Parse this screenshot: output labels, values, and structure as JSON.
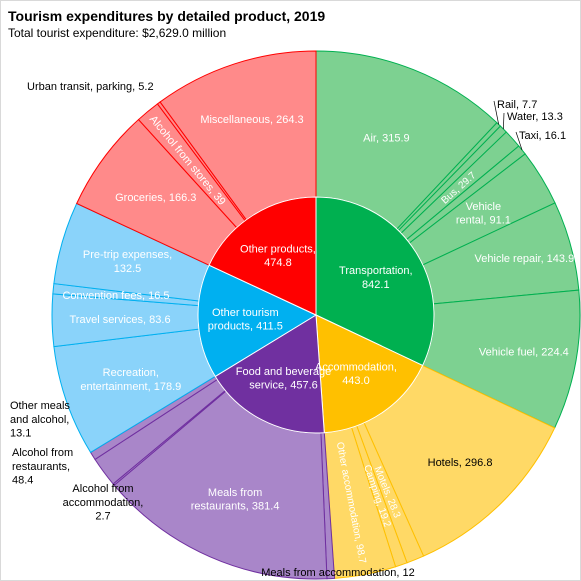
{
  "chart_data": {
    "type": "sunburst",
    "title": "Tourism expenditures by detailed product, 2019",
    "subtitle": "Total tourist expenditure: $2,629.0 million",
    "inner": [
      {
        "name": "Transportation",
        "value": 842.1,
        "label": "Transportation, 842.1",
        "color": "#00b050"
      },
      {
        "name": "Accommodation",
        "value": 443.0,
        "label": "Accommodation, 443.0",
        "color": "#ffc000"
      },
      {
        "name": "Food and beverage service",
        "value": 457.6,
        "label": "Food and beverage service, 457.6",
        "color": "#7030a0"
      },
      {
        "name": "Other tourism products",
        "value": 411.5,
        "label": "Other tourism products, 411.5",
        "color": "#00b0f0"
      },
      {
        "name": "Other products",
        "value": 474.8,
        "label": "Other products, 474.8",
        "color": "#ff0000"
      }
    ],
    "outer": [
      {
        "parent": "Transportation",
        "name": "Air",
        "value": 315.9,
        "label": "Air, 315.9",
        "color": "#7dd191"
      },
      {
        "parent": "Transportation",
        "name": "Rail",
        "value": 7.7,
        "label": "Rail, 7.7",
        "color": "#7dd191"
      },
      {
        "parent": "Transportation",
        "name": "Water",
        "value": 13.3,
        "label": "Water, 13.3",
        "color": "#7dd191"
      },
      {
        "parent": "Transportation",
        "name": "Bus",
        "value": 29.7,
        "label": "Bus, 29.7",
        "color": "#7dd191"
      },
      {
        "parent": "Transportation",
        "name": "Taxi",
        "value": 16.1,
        "label": "Taxi, 16.1",
        "color": "#7dd191"
      },
      {
        "parent": "Transportation",
        "name": "Vehicle rental",
        "value": 91.1,
        "label": "Vehicle rental, 91.1",
        "color": "#7dd191"
      },
      {
        "parent": "Transportation",
        "name": "Vehicle repair",
        "value": 143.9,
        "label": "Vehicle repair, 143.9",
        "color": "#7dd191"
      },
      {
        "parent": "Transportation",
        "name": "Vehicle fuel",
        "value": 224.4,
        "label": "Vehicle fuel, 224.4",
        "color": "#7dd191"
      },
      {
        "parent": "Accommodation",
        "name": "Hotels",
        "value": 296.8,
        "label": "Hotels, 296.8",
        "color": "#ffd966"
      },
      {
        "parent": "Accommodation",
        "name": "Motels",
        "value": 28.3,
        "label": "Motels, 28.3",
        "color": "#ffd966"
      },
      {
        "parent": "Accommodation",
        "name": "Camping",
        "value": 19.2,
        "label": "Camping, 19.2",
        "color": "#ffd966"
      },
      {
        "parent": "Accommodation",
        "name": "Other accommodation",
        "value": 98.7,
        "label": "Other accommodation, 98.7",
        "color": "#ffd966"
      },
      {
        "parent": "Food and beverage service",
        "name": "Meals from accommodation",
        "value": 12,
        "label": "Meals from accommodation, 12",
        "color": "#a986c9"
      },
      {
        "parent": "Food and beverage service",
        "name": "Meals from restaurants",
        "value": 381.4,
        "label": "Meals from restaurants, 381.4",
        "color": "#a986c9"
      },
      {
        "parent": "Food and beverage service",
        "name": "Alcohol from accommodation",
        "value": 2.7,
        "label": "Alcohol from accommodation, 2.7",
        "color": "#a986c9"
      },
      {
        "parent": "Food and beverage service",
        "name": "Alcohol from restaurants",
        "value": 48.4,
        "label": "Alcohol from restaurants, 48.4",
        "color": "#a986c9"
      },
      {
        "parent": "Food and beverage service",
        "name": "Other meals and alcohol",
        "value": 13.1,
        "label": "Other meals and alcohol, 13.1",
        "color": "#a986c9"
      },
      {
        "parent": "Other tourism products",
        "name": "Recreation, entertainment",
        "value": 178.9,
        "label": "Recreation, entertainment, 178.9",
        "color": "#8ad3fa"
      },
      {
        "parent": "Other tourism products",
        "name": "Travel services",
        "value": 83.6,
        "label": "Travel services, 83.6",
        "color": "#8ad3fa"
      },
      {
        "parent": "Other tourism products",
        "name": "Convention fees",
        "value": 16.5,
        "label": "Convention fees, 16.5",
        "color": "#8ad3fa"
      },
      {
        "parent": "Other tourism products",
        "name": "Pre-trip expenses",
        "value": 132.5,
        "label": "Pre-trip expenses, 132.5",
        "color": "#8ad3fa"
      },
      {
        "parent": "Other products",
        "name": "Groceries",
        "value": 166.3,
        "label": "Groceries, 166.3",
        "color": "#ff8a8a"
      },
      {
        "parent": "Other products",
        "name": "Alcohol from stores",
        "value": 39,
        "label": "Alcohol from stores, 39",
        "color": "#ff8a8a"
      },
      {
        "parent": "Other products",
        "name": "Urban transit, parking",
        "value": 5.2,
        "label": "Urban transit, parking, 5.2",
        "color": "#ff8a8a"
      },
      {
        "parent": "Other products",
        "name": "Miscellaneous",
        "value": 264.3,
        "label": "Miscellaneous, 264.3",
        "color": "#ff8a8a"
      }
    ]
  }
}
